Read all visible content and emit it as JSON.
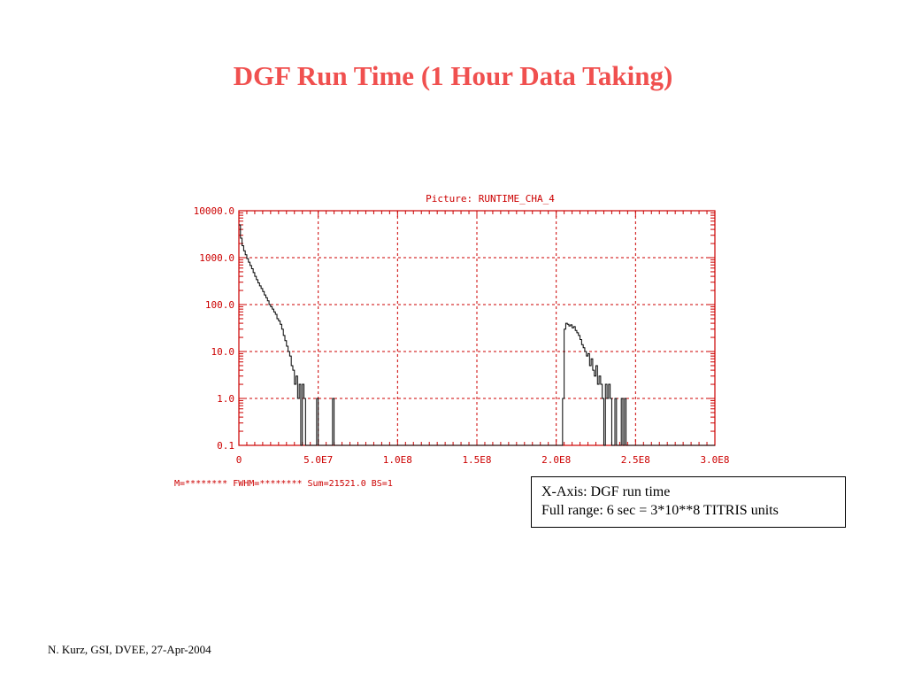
{
  "slide": {
    "title": "DGF Run Time (1 Hour Data Taking)",
    "footer": "N. Kurz, GSI, DVEE, 27-Apr-2004"
  },
  "note": {
    "line1": "X-Axis: DGF run time",
    "line2": "Full range: 6 sec = 3*10**8 TITRIS units"
  },
  "colors": {
    "title": "#f0504f",
    "plot_red": "#cc0000",
    "histogram": "#000000"
  },
  "chart_data": {
    "type": "line",
    "style": "histogram-step",
    "title": "Picture: RUNTIME_CHA_4",
    "xlabel": "",
    "ylabel": "",
    "y_scale": "log",
    "xlim": [
      0,
      300000000
    ],
    "ylim": [
      0.1,
      10000
    ],
    "x_ticks": [
      0,
      50000000,
      100000000,
      150000000,
      200000000,
      250000000,
      300000000
    ],
    "x_tick_labels": [
      "0",
      "5.0E7",
      "1.0E8",
      "1.5E8",
      "2.0E8",
      "2.5E8",
      "3.0E8"
    ],
    "y_ticks": [
      0.1,
      1,
      10,
      100,
      1000,
      10000
    ],
    "y_tick_labels": [
      "0.1",
      "1.0",
      "10.0",
      "100.0",
      "1000.0",
      "10000.0"
    ],
    "grid": true,
    "stats_line": "M=******** FWHM=******** Sum=21521.0 BS=1",
    "series": [
      {
        "values": [
          [
            0,
            5000
          ],
          [
            1000000,
            2600
          ],
          [
            2000000,
            1800
          ],
          [
            3000000,
            1400
          ],
          [
            4000000,
            1150
          ],
          [
            5000000,
            950
          ],
          [
            6000000,
            800
          ],
          [
            7000000,
            680
          ],
          [
            8000000,
            580
          ],
          [
            9000000,
            480
          ],
          [
            10000000,
            400
          ],
          [
            11000000,
            340
          ],
          [
            12000000,
            290
          ],
          [
            13000000,
            250
          ],
          [
            14000000,
            220
          ],
          [
            15000000,
            190
          ],
          [
            16000000,
            160
          ],
          [
            17000000,
            140
          ],
          [
            18000000,
            120
          ],
          [
            19000000,
            100
          ],
          [
            20000000,
            90
          ],
          [
            21000000,
            80
          ],
          [
            22000000,
            70
          ],
          [
            23000000,
            62
          ],
          [
            24000000,
            50
          ],
          [
            25000000,
            45
          ],
          [
            26000000,
            38
          ],
          [
            27000000,
            30
          ],
          [
            28000000,
            22
          ],
          [
            29000000,
            17
          ],
          [
            30000000,
            13
          ],
          [
            31000000,
            10
          ],
          [
            32000000,
            8
          ],
          [
            33000000,
            5
          ],
          [
            34000000,
            4
          ],
          [
            35000000,
            2
          ],
          [
            36000000,
            3
          ],
          [
            37000000,
            1
          ],
          [
            38000000,
            2
          ],
          [
            39000000,
            0
          ],
          [
            40000000,
            2
          ],
          [
            41000000,
            1
          ],
          [
            42000000,
            0
          ],
          [
            49000000,
            1
          ],
          [
            50000000,
            0
          ],
          [
            59000000,
            1
          ],
          [
            60000000,
            0
          ],
          [
            204000000,
            1
          ],
          [
            205000000,
            30
          ],
          [
            206000000,
            40
          ],
          [
            207000000,
            38
          ],
          [
            208000000,
            35
          ],
          [
            209000000,
            37
          ],
          [
            210000000,
            32
          ],
          [
            211000000,
            34
          ],
          [
            212000000,
            28
          ],
          [
            213000000,
            25
          ],
          [
            214000000,
            22
          ],
          [
            215000000,
            18
          ],
          [
            216000000,
            14
          ],
          [
            217000000,
            12
          ],
          [
            218000000,
            10
          ],
          [
            219000000,
            8
          ],
          [
            220000000,
            9
          ],
          [
            221000000,
            5
          ],
          [
            222000000,
            7
          ],
          [
            223000000,
            4
          ],
          [
            224000000,
            3
          ],
          [
            225000000,
            5
          ],
          [
            226000000,
            2
          ],
          [
            227000000,
            3
          ],
          [
            228000000,
            2
          ],
          [
            229000000,
            1
          ],
          [
            230000000,
            0
          ],
          [
            231000000,
            2
          ],
          [
            232000000,
            1
          ],
          [
            233000000,
            2
          ],
          [
            234000000,
            1
          ],
          [
            235000000,
            0
          ],
          [
            237000000,
            1
          ],
          [
            238000000,
            0
          ],
          [
            241000000,
            1
          ],
          [
            242000000,
            0
          ],
          [
            243000000,
            1
          ],
          [
            244000000,
            0
          ],
          [
            300000000,
            0
          ]
        ]
      }
    ]
  }
}
